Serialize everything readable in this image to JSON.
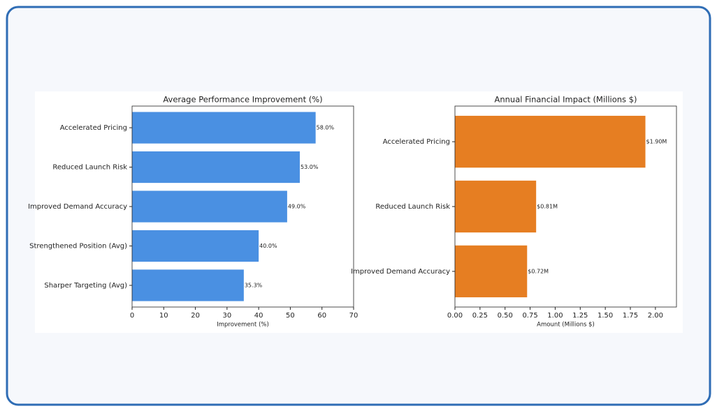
{
  "chart_data": [
    {
      "type": "bar",
      "orientation": "horizontal",
      "title": "Average Performance Improvement (%)",
      "x_label": "Improvement (%)",
      "categories": [
        "Accelerated Pricing",
        "Reduced Launch Risk",
        "Improved Demand Accuracy",
        "Strengthened Position (Avg)",
        "Sharper Targeting (Avg)"
      ],
      "values": [
        58.0,
        53.0,
        49.0,
        40.0,
        35.3
      ],
      "value_labels": [
        "58.0%",
        "53.0%",
        "49.0%",
        "40.0%",
        "35.3%"
      ],
      "color": "#4a90e2",
      "xlim": [
        0,
        70
      ],
      "xticks": [
        0,
        10,
        20,
        30,
        40,
        50,
        60,
        70
      ]
    },
    {
      "type": "bar",
      "orientation": "horizontal",
      "title": "Annual Financial Impact (Millions $)",
      "x_label": "Amount (Millions $)",
      "categories": [
        "Accelerated Pricing",
        "Reduced Launch Risk",
        "Improved Demand Accuracy"
      ],
      "values": [
        1.9,
        0.81,
        0.72
      ],
      "value_labels": [
        "$1.90M",
        "$0.81M",
        "$0.72M"
      ],
      "color": "#e67e22",
      "xlim": [
        0,
        2.21
      ],
      "xticks": [
        {
          "value": 0,
          "label": "0.00"
        },
        {
          "value": 0.25,
          "label": "0.25"
        },
        {
          "value": 0.5,
          "label": "0.50"
        },
        {
          "value": 0.75,
          "label": "0.75"
        },
        {
          "value": 1,
          "label": "1.00"
        },
        {
          "value": 1.25,
          "label": "1.25"
        },
        {
          "value": 1.5,
          "label": "1.50"
        },
        {
          "value": 1.75,
          "label": "1.75"
        },
        {
          "value": 2,
          "label": "2.00"
        }
      ]
    }
  ]
}
